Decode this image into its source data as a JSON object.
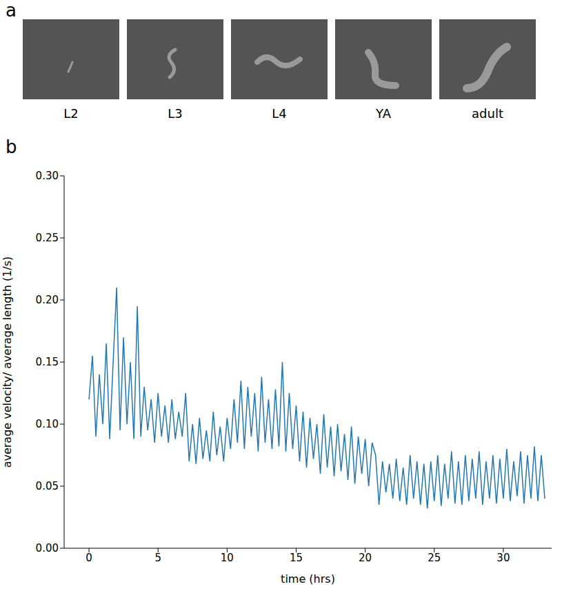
{
  "panel_a": {
    "panel_label": "a",
    "stages": [
      "L2",
      "L3",
      "L4",
      "YA",
      "adult"
    ]
  },
  "chart_data": {
    "panel_label": "b",
    "type": "line",
    "x_label": "time (hrs)",
    "y_label": "average velocity/ average length (1/s)",
    "xlim": [
      -1.8,
      33.5
    ],
    "xticks": [
      0,
      5,
      10,
      15,
      20,
      25,
      30
    ],
    "ylim": [
      0,
      0.3
    ],
    "yticks": [
      {
        "value": 0,
        "label": "0.00"
      },
      {
        "value": 0.05,
        "label": "0.05"
      },
      {
        "value": 0.1,
        "label": "0.10"
      },
      {
        "value": 0.15,
        "label": "0.15"
      },
      {
        "value": 0.2,
        "label": "0.20"
      },
      {
        "value": 0.25,
        "label": "0.25"
      },
      {
        "value": 0.3,
        "label": "0.30"
      }
    ],
    "grid": false,
    "color": "#1f77b4",
    "x": [
      0,
      0.25,
      0.5,
      0.75,
      1,
      1.25,
      1.5,
      1.75,
      2,
      2.25,
      2.5,
      2.75,
      3,
      3.25,
      3.5,
      3.75,
      4,
      4.25,
      4.5,
      4.75,
      5,
      5.25,
      5.5,
      5.75,
      6,
      6.25,
      6.5,
      6.75,
      7,
      7.25,
      7.5,
      7.75,
      8,
      8.25,
      8.5,
      8.75,
      9,
      9.25,
      9.5,
      9.75,
      10,
      10.25,
      10.5,
      10.75,
      11,
      11.25,
      11.5,
      11.75,
      12,
      12.25,
      12.5,
      12.75,
      13,
      13.25,
      13.5,
      13.75,
      14,
      14.25,
      14.5,
      14.75,
      15,
      15.25,
      15.5,
      15.75,
      16,
      16.25,
      16.5,
      16.75,
      17,
      17.25,
      17.5,
      17.75,
      18,
      18.25,
      18.5,
      18.75,
      19,
      19.25,
      19.5,
      19.75,
      20,
      20.25,
      20.5,
      20.75,
      21,
      21.25,
      21.5,
      21.75,
      22,
      22.25,
      22.5,
      22.75,
      23,
      23.25,
      23.5,
      23.75,
      24,
      24.25,
      24.5,
      24.75,
      25,
      25.25,
      25.5,
      25.75,
      26,
      26.25,
      26.5,
      26.75,
      27,
      27.25,
      27.5,
      27.75,
      28,
      28.25,
      28.5,
      28.75,
      29,
      29.25,
      29.5,
      29.75,
      30,
      30.25,
      30.5,
      30.75,
      31,
      31.25,
      31.5,
      31.75,
      32,
      32.25,
      32.5,
      32.75,
      33
    ],
    "values": [
      0.12,
      0.155,
      0.09,
      0.14,
      0.1,
      0.165,
      0.088,
      0.15,
      0.21,
      0.095,
      0.17,
      0.1,
      0.15,
      0.088,
      0.195,
      0.09,
      0.13,
      0.095,
      0.12,
      0.085,
      0.125,
      0.09,
      0.115,
      0.085,
      0.12,
      0.088,
      0.11,
      0.09,
      0.125,
      0.07,
      0.1,
      0.068,
      0.105,
      0.072,
      0.095,
      0.07,
      0.11,
      0.075,
      0.098,
      0.07,
      0.105,
      0.08,
      0.12,
      0.085,
      0.135,
      0.08,
      0.13,
      0.09,
      0.125,
      0.078,
      0.138,
      0.085,
      0.12,
      0.08,
      0.128,
      0.082,
      0.15,
      0.078,
      0.125,
      0.08,
      0.115,
      0.07,
      0.11,
      0.065,
      0.105,
      0.072,
      0.1,
      0.06,
      0.108,
      0.065,
      0.098,
      0.058,
      0.1,
      0.062,
      0.092,
      0.055,
      0.098,
      0.052,
      0.09,
      0.06,
      0.088,
      0.05,
      0.085,
      0.075,
      0.035,
      0.07,
      0.045,
      0.068,
      0.04,
      0.072,
      0.038,
      0.065,
      0.035,
      0.075,
      0.04,
      0.07,
      0.035,
      0.068,
      0.032,
      0.07,
      0.038,
      0.075,
      0.034,
      0.068,
      0.04,
      0.078,
      0.036,
      0.07,
      0.035,
      0.075,
      0.038,
      0.072,
      0.04,
      0.078,
      0.035,
      0.07,
      0.04,
      0.075,
      0.036,
      0.072,
      0.04,
      0.08,
      0.038,
      0.07,
      0.042,
      0.078,
      0.036,
      0.075,
      0.04,
      0.082,
      0.038,
      0.075,
      0.04
    ]
  }
}
